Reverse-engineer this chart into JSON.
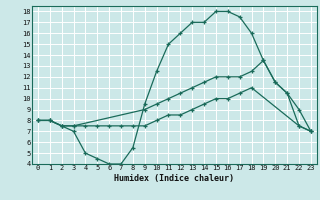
{
  "xlabel": "Humidex (Indice chaleur)",
  "bg_color": "#cce8e8",
  "line_color": "#1a6b5a",
  "grid_color": "#ffffff",
  "xlim": [
    -0.5,
    23.5
  ],
  "ylim": [
    4,
    18.5
  ],
  "xticks": [
    0,
    1,
    2,
    3,
    4,
    5,
    6,
    7,
    8,
    9,
    10,
    11,
    12,
    13,
    14,
    15,
    16,
    17,
    18,
    19,
    20,
    21,
    22,
    23
  ],
  "yticks": [
    4,
    5,
    6,
    7,
    8,
    9,
    10,
    11,
    12,
    13,
    14,
    15,
    16,
    17,
    18
  ],
  "line1_x": [
    0,
    1,
    2,
    3,
    4,
    5,
    6,
    7,
    8,
    9,
    10,
    11,
    12,
    13,
    14,
    15,
    16,
    17,
    18,
    19,
    20,
    21,
    22,
    23
  ],
  "line1_y": [
    8,
    8,
    7.5,
    7,
    5,
    4.5,
    4,
    4,
    5.5,
    9.5,
    12.5,
    15,
    16,
    17,
    17,
    18,
    18,
    17.5,
    16,
    13.5,
    11.5,
    10.5,
    9,
    7
  ],
  "line2_x": [
    0,
    1,
    2,
    3,
    9,
    10,
    11,
    12,
    13,
    14,
    15,
    16,
    17,
    18,
    19,
    20,
    21,
    22,
    23
  ],
  "line2_y": [
    8,
    8,
    7.5,
    7.5,
    9,
    9.5,
    10,
    10.5,
    11,
    11.5,
    12,
    12,
    12,
    12.5,
    13.5,
    11.5,
    10.5,
    7.5,
    7.0
  ],
  "line3_x": [
    0,
    1,
    2,
    3,
    4,
    5,
    6,
    7,
    8,
    9,
    10,
    11,
    12,
    13,
    14,
    15,
    16,
    17,
    18,
    22,
    23
  ],
  "line3_y": [
    8,
    8,
    7.5,
    7.5,
    7.5,
    7.5,
    7.5,
    7.5,
    7.5,
    7.5,
    8,
    8.5,
    8.5,
    9,
    9.5,
    10,
    10,
    10.5,
    11,
    7.5,
    7.0
  ]
}
